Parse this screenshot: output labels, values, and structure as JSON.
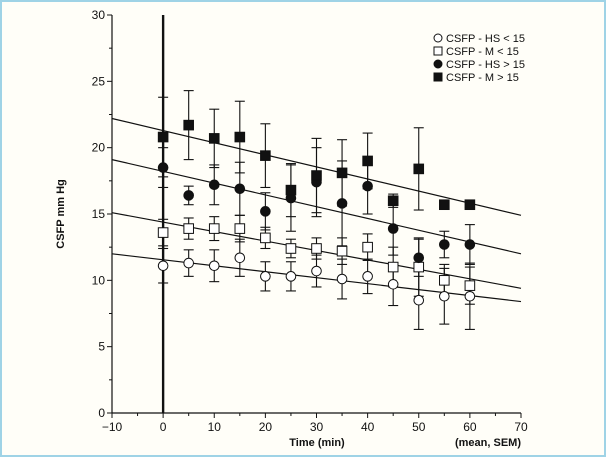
{
  "chart_data": {
    "type": "scatter",
    "title": "",
    "xlabel": "Time (min)",
    "xlabel_note": "(mean, SEM)",
    "ylabel": "CSFP mm Hg",
    "xlim": [
      -10,
      70
    ],
    "ylim": [
      0,
      30
    ],
    "x_ticks": [
      -10,
      0,
      10,
      20,
      30,
      40,
      50,
      60,
      70
    ],
    "x_minor_ticks": [
      -5,
      5,
      15,
      25,
      35,
      45,
      55,
      65
    ],
    "y_ticks": [
      0,
      5,
      10,
      15,
      20,
      25,
      30
    ],
    "y_minor_ticks": [
      2.5,
      7.5,
      12.5,
      17.5,
      22.5,
      27.5
    ],
    "grid": false,
    "legend_position": "top-right",
    "vertical_reference_line_x": 0,
    "x": [
      0,
      5,
      10,
      15,
      20,
      25,
      30,
      35,
      40,
      45,
      50,
      55,
      60
    ],
    "series": [
      {
        "name": "CSFP - HS < 15",
        "marker": "open-circle",
        "values": [
          11.1,
          11.3,
          11.1,
          11.7,
          10.3,
          10.3,
          10.7,
          10.1,
          10.3,
          9.7,
          8.5,
          8.8,
          8.8
        ],
        "sem": [
          1.3,
          1.0,
          1.2,
          1.4,
          1.1,
          1.1,
          1.2,
          1.5,
          1.3,
          1.6,
          2.2,
          2.1,
          2.5
        ],
        "trend": {
          "x": [
            -10,
            70
          ],
          "y": [
            12.0,
            8.4
          ]
        }
      },
      {
        "name": "CSFP - M < 15",
        "marker": "open-square",
        "values": [
          13.6,
          13.9,
          13.9,
          13.9,
          13.2,
          12.4,
          12.4,
          12.2,
          12.5,
          11.0,
          11.0,
          10.0,
          9.6
        ],
        "sem": [
          1.0,
          0.8,
          0.9,
          1.0,
          0.8,
          0.7,
          0.8,
          1.0,
          1.0,
          1.5,
          2.2,
          1.2,
          1.4
        ],
        "trend": {
          "x": [
            -10,
            70
          ],
          "y": [
            15.1,
            9.4
          ]
        }
      },
      {
        "name": "CSFP - HS > 15",
        "marker": "filled-circle",
        "values": [
          18.5,
          16.4,
          17.2,
          16.9,
          15.2,
          16.2,
          17.4,
          15.8,
          17.1,
          13.9,
          11.7,
          12.7,
          12.7
        ],
        "sem": [
          1.5,
          0.7,
          1.5,
          2.0,
          1.4,
          2.5,
          2.6,
          3.2,
          2.1,
          2.0,
          1.4,
          1.0,
          1.5
        ],
        "trend": {
          "x": [
            -10,
            70
          ],
          "y": [
            19.1,
            12.0
          ]
        }
      },
      {
        "name": "CSFP - M > 15",
        "marker": "filled-square",
        "values": [
          20.8,
          21.7,
          20.7,
          20.8,
          19.4,
          16.8,
          17.9,
          18.1,
          19.0,
          16.0,
          18.4,
          15.7,
          15.7
        ],
        "sem": [
          3.0,
          2.6,
          2.2,
          2.7,
          2.4,
          2.0,
          2.8,
          2.5,
          2.1,
          0.5,
          3.1,
          0.2,
          0.2
        ],
        "trend": {
          "x": [
            -10,
            70
          ],
          "y": [
            22.2,
            14.9
          ]
        }
      }
    ],
    "legend": [
      {
        "label": "CSFP - HS < 15",
        "marker": "open-circle"
      },
      {
        "label": "CSFP - M < 15",
        "marker": "open-square"
      },
      {
        "label": "CSFP - HS > 15",
        "marker": "filled-circle"
      },
      {
        "label": "CSFP - M > 15",
        "marker": "filled-square"
      }
    ]
  },
  "colors": {
    "ink": "#111111",
    "marker_fill_open": "#ffffff",
    "background": "#fffef8",
    "frame_border": "#9fd3e6"
  }
}
